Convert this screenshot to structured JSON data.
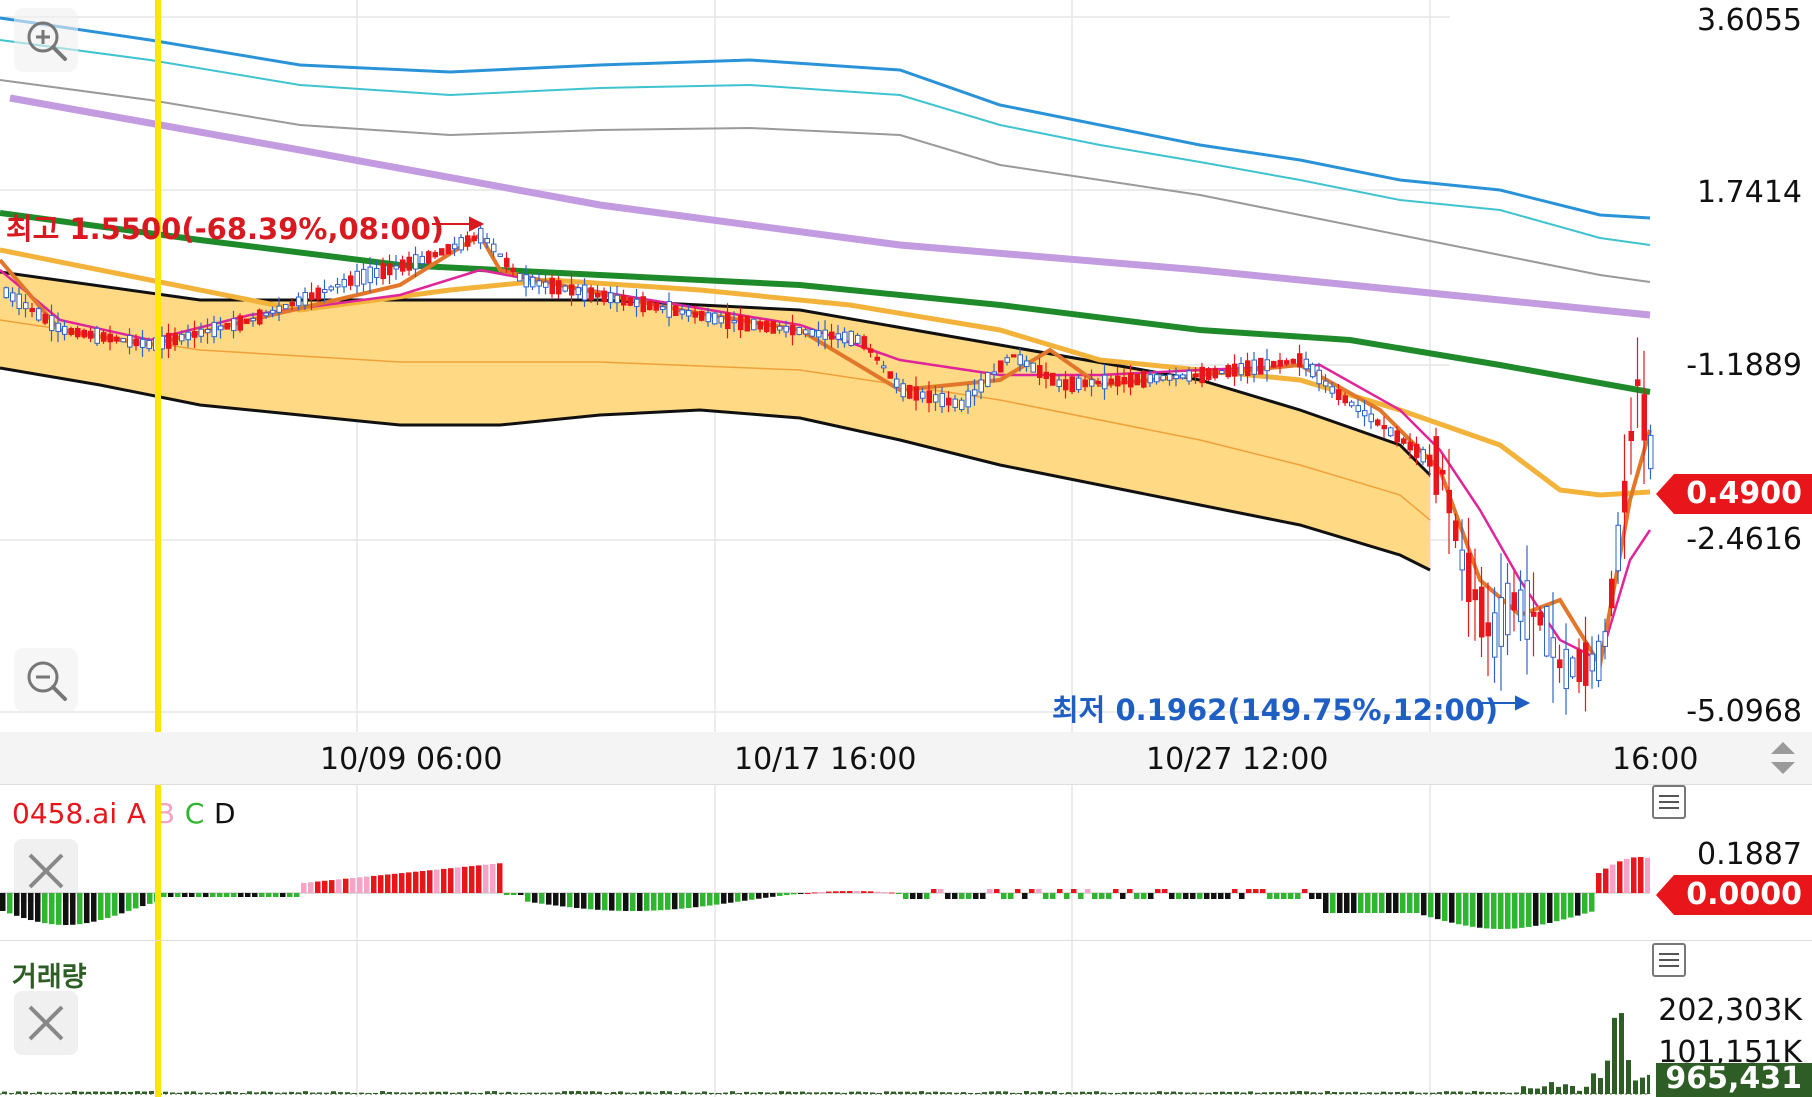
{
  "price_axis": {
    "labels": [
      "3.6055",
      "1.7414",
      "-1.1889",
      "-2.4616",
      "-5.0968"
    ],
    "current_price": "0.4900",
    "current_price_color": "#e8161b"
  },
  "annotations": {
    "high": "최고 1.5500(-68.39%,08:00)",
    "low": "최저 0.1962(149.75%,12:00)",
    "high_color": "#d8191f",
    "low_color": "#1f5fc4"
  },
  "time_axis": {
    "labels": [
      "10/09 06:00",
      "10/17 16:00",
      "10/27 12:00",
      "16:00"
    ]
  },
  "indicator_pane": {
    "title_prefix": "0458.ai",
    "series": [
      "A",
      "B",
      "C",
      "D"
    ],
    "series_colors": [
      "#e8161b",
      "#f5a3c7",
      "#2fb52f",
      "#111111"
    ],
    "axis_label": "0.1887",
    "current_value": "0.0000"
  },
  "volume_pane": {
    "title": "거래량",
    "axis_labels": [
      "202,303K",
      "101,151K"
    ],
    "current_value": "965,431",
    "current_value_color": "#2e5d26"
  },
  "icons": [
    "zoom-in-icon",
    "zoom-out-icon",
    "close-icon",
    "menu-icon",
    "scroll-arrows-icon"
  ],
  "colors": {
    "band_fill": "#ffd983",
    "up_candle": "#e8161b",
    "down_candle": "#2f63c8",
    "highlight_line": "#ffe600",
    "ma_green": "#1f8a2a",
    "ma_purple": "#c39be0",
    "ma_blue": "#2a93d8"
  }
}
